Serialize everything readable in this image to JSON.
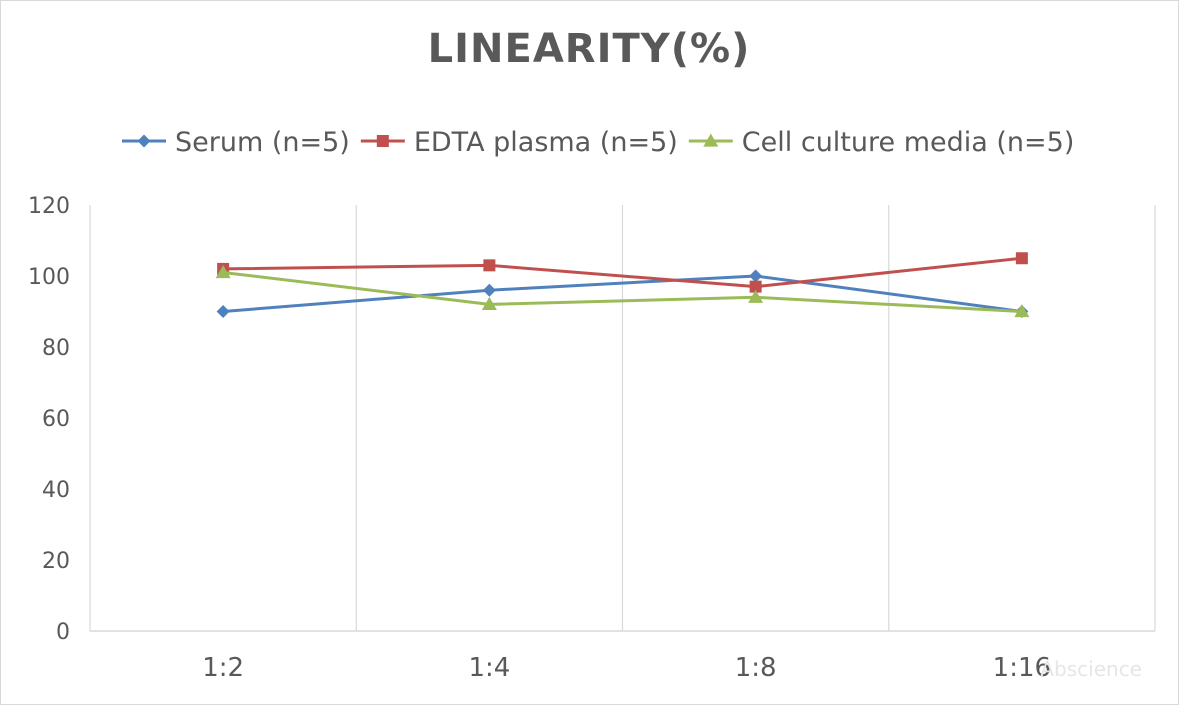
{
  "chart_data": {
    "type": "line",
    "title": "LINEARITY(%)",
    "categories": [
      "1:2",
      "1:4",
      "1:8",
      "1:16"
    ],
    "series": [
      {
        "name": "Serum (n=5)",
        "values": [
          90,
          96,
          100,
          90
        ],
        "color": "#4f81bd",
        "marker": "diamond"
      },
      {
        "name": "EDTA plasma (n=5)",
        "values": [
          102,
          103,
          97,
          105
        ],
        "color": "#c0504d",
        "marker": "square"
      },
      {
        "name": "Cell culture media (n=5)",
        "values": [
          101,
          92,
          94,
          90
        ],
        "color": "#9bbb59",
        "marker": "triangle"
      }
    ],
    "ylim": [
      0,
      120
    ],
    "yticks": [
      0,
      20,
      40,
      60,
      80,
      100,
      120
    ],
    "grid": "vertical",
    "legend_position": "top",
    "watermark": "Abscience"
  }
}
